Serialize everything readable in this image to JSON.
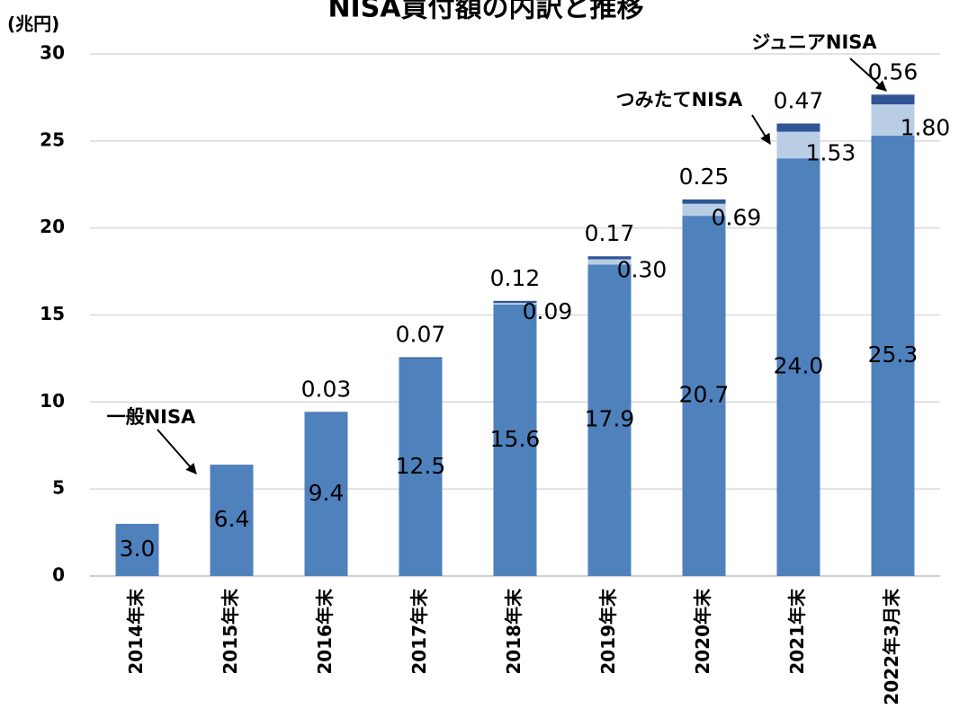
{
  "chart_data": {
    "type": "stacked-bar",
    "title": "NISA買付額の内訳と推移",
    "y_axis_label": "(兆円)",
    "categories": [
      "2014年末",
      "2015年末",
      "2016年末",
      "2017年末",
      "2018年末",
      "2019年末",
      "2020年末",
      "2021年末",
      "2022年3月末"
    ],
    "series": [
      {
        "name": "一般NISA",
        "color": "#4f81bd",
        "values": [
          3.0,
          6.4,
          9.4,
          12.5,
          15.6,
          17.9,
          20.7,
          24.0,
          25.3
        ],
        "value_labels": [
          "3.0",
          "6.4",
          "9.4",
          "12.5",
          "15.6",
          "17.9",
          "20.7",
          "24.0",
          "25.3"
        ]
      },
      {
        "name": "つみたてNISA",
        "color": "#b9cde5",
        "values": [
          null,
          null,
          null,
          null,
          0.09,
          0.3,
          0.69,
          1.53,
          1.8
        ],
        "value_labels": [
          null,
          null,
          null,
          null,
          "0.09",
          "0.30",
          "0.69",
          "1.53",
          "1.80"
        ]
      },
      {
        "name": "ジュニアNISA",
        "color": "#2f5597",
        "values": [
          null,
          null,
          0.03,
          0.07,
          0.12,
          0.17,
          0.25,
          0.47,
          0.56
        ],
        "value_labels": [
          null,
          null,
          "0.03",
          "0.07",
          "0.12",
          "0.17",
          "0.25",
          "0.47",
          "0.56"
        ]
      }
    ],
    "ylim": [
      0,
      30
    ],
    "yticks": [
      0,
      5,
      10,
      15,
      20,
      25,
      30
    ],
    "grid": true
  }
}
